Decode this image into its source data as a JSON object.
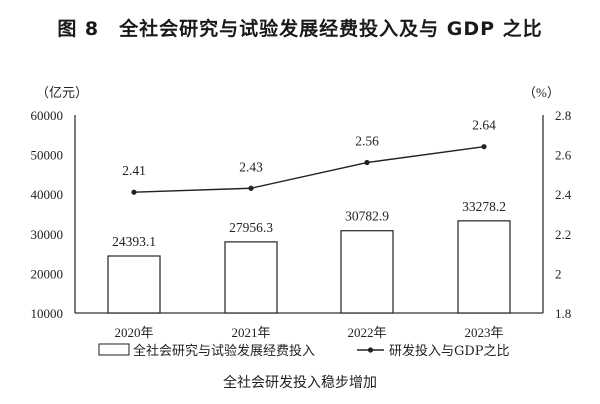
{
  "title": "图 8　全社会研究与试验发展经费投入及与 GDP 之比",
  "caption": "全社会研发投入稳步增加",
  "left_axis_unit": "（亿元）",
  "right_axis_unit": "（%）",
  "legend": {
    "bar_label": "全社会研究与试验发展经费投入",
    "line_label": "研发投入与GDP之比"
  },
  "chart_data": {
    "type": "bar+line",
    "title": "全社会研究与试验发展经费投入及与 GDP 之比",
    "subtitle": "全社会研发投入稳步增加",
    "categories": [
      "2020年",
      "2021年",
      "2022年",
      "2023年"
    ],
    "series": [
      {
        "name": "全社会研究与试验发展经费投入",
        "type": "bar",
        "axis": "left",
        "unit": "亿元",
        "values": [
          24393.1,
          27956.3,
          30782.9,
          33278.2
        ]
      },
      {
        "name": "研发投入与GDP之比",
        "type": "line",
        "axis": "right",
        "unit": "%",
        "values": [
          2.41,
          2.43,
          2.56,
          2.64
        ]
      }
    ],
    "left_axis": {
      "label": "亿元",
      "ylim": [
        10000,
        60000
      ],
      "ticks": [
        "10000",
        "20000",
        "30000",
        "40000",
        "50000",
        "60000"
      ]
    },
    "right_axis": {
      "label": "%",
      "ylim": [
        1.8,
        2.8
      ],
      "ticks": [
        "1.8",
        "2",
        "2.2",
        "2.4",
        "2.6",
        "2.8"
      ]
    },
    "grid": false,
    "legend_position": "bottom"
  }
}
